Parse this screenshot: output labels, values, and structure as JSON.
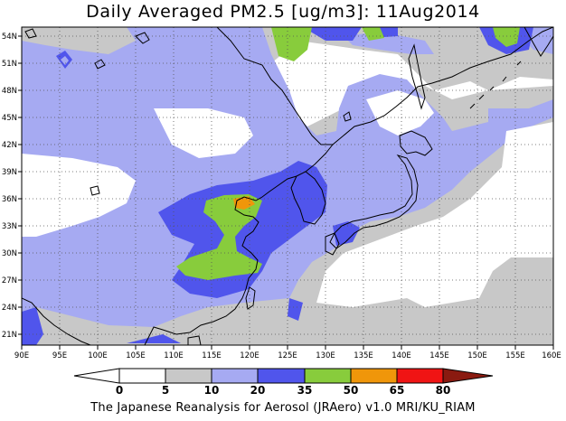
{
  "title": "Daily Averaged PM2.5 [ug/m3]: 11Aug2014",
  "footer": "The Japanese Reanalysis for Aerosol (JRAero) v1.0 MRI/KU_RIAM",
  "colors": {
    "c0_5": "#ffffff",
    "c5_10": "#c8c8c8",
    "c10_20": "#a6aaf2",
    "c20_35": "#5055ec",
    "c35_50": "#88cc3c",
    "c50_65": "#f0960a",
    "c65_80": "#f01414",
    "c80plus": "#8a1a10"
  },
  "map": {
    "lon_range": [
      90,
      160
    ],
    "lat_range": [
      20,
      55
    ],
    "lon_ticks": [
      "90E",
      "95E",
      "100E",
      "105E",
      "110E",
      "115E",
      "120E",
      "125E",
      "130E",
      "135E",
      "140E",
      "145E",
      "150E",
      "155E",
      "160E"
    ],
    "lat_ticks": [
      "21N",
      "24N",
      "27N",
      "30N",
      "33N",
      "36N",
      "39N",
      "42N",
      "45N",
      "48N",
      "51N",
      "54N"
    ]
  },
  "colorbar": {
    "labels": [
      "0",
      "5",
      "10",
      "20",
      "35",
      "50",
      "65",
      "80"
    ],
    "bins": [
      "#ffffff",
      "#ffffff",
      "#c8c8c8",
      "#a6aaf2",
      "#5055ec",
      "#88cc3c",
      "#f0960a",
      "#f01414",
      "#8a1a10"
    ]
  }
}
